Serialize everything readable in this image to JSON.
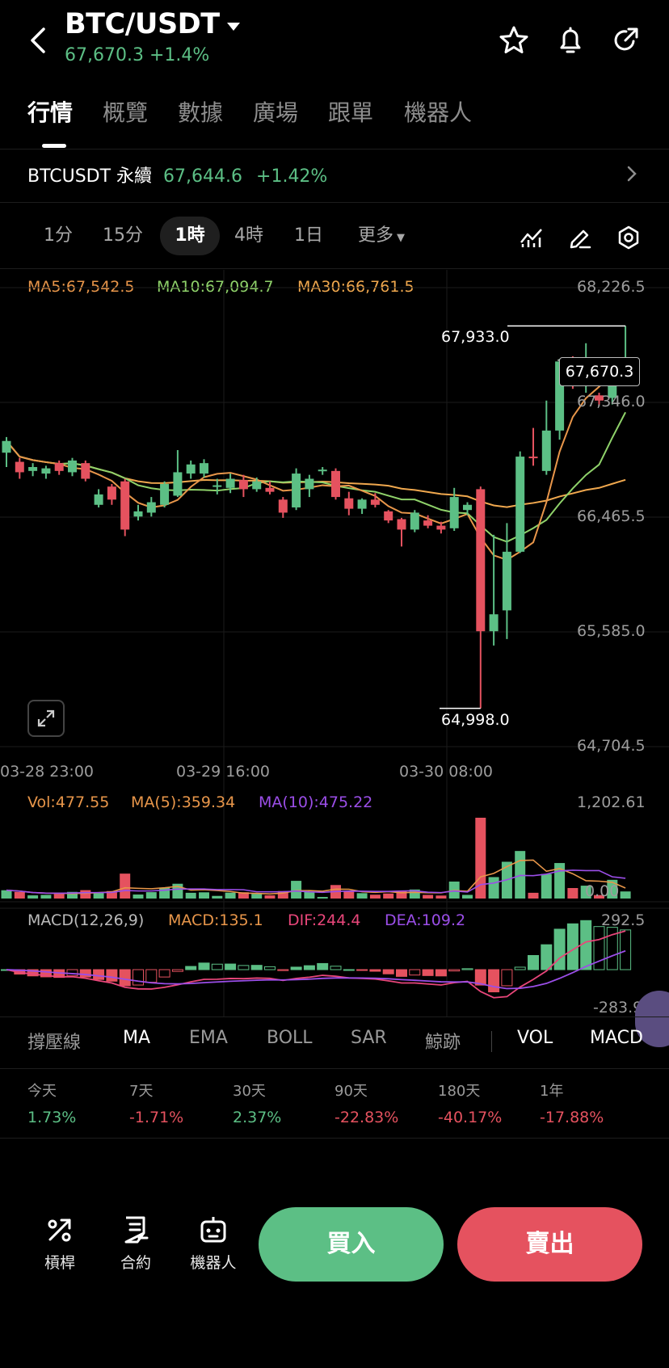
{
  "header": {
    "pair": "BTC/USDT",
    "price_change": "67,670.3 +1.4%"
  },
  "tabs": [
    "行情",
    "概覽",
    "數據",
    "廣場",
    "跟單",
    "機器人"
  ],
  "contract": {
    "name": "BTCUSDT 永續",
    "price": "67,644.6",
    "change": "+1.42%"
  },
  "intervals": [
    "1分",
    "15分",
    "1時",
    "4時",
    "1日",
    "更多"
  ],
  "active_interval": "1時",
  "ma_legend": {
    "ma5": "MA5:67,542.5",
    "ma10": "MA10:67,094.7",
    "ma30": "MA30:66,761.5"
  },
  "price_axis": [
    "68,226.5",
    "67,346.0",
    "66,465.5",
    "65,585.0",
    "64,704.5"
  ],
  "time_axis": [
    "03-28 23:00",
    "03-29 16:00",
    "03-30 08:00"
  ],
  "annotations": {
    "high": "67,933.0",
    "low": "64,998.0",
    "current": "67,670.3"
  },
  "volume_legend": {
    "vol": "Vol:477.55",
    "ma5": "MA(5):359.34",
    "ma10": "MA(10):475.22",
    "axis_top": "1,202.61",
    "axis_bottom": "0.00"
  },
  "macd_legend": {
    "params": "MACD(12,26,9)",
    "macd": "MACD:135.1",
    "dif": "DIF:244.4",
    "dea": "DEA:109.2",
    "axis_top": "292.5",
    "axis_bottom": "-283.9"
  },
  "indicator_tabs": [
    "撐壓線",
    "MA",
    "EMA",
    "BOLL",
    "SAR",
    "鯨跡",
    "VOL",
    "MACD"
  ],
  "performance": [
    {
      "label": "今天",
      "value": "1.73%",
      "color": "green"
    },
    {
      "label": "7天",
      "value": "-1.71%",
      "color": "red"
    },
    {
      "label": "30天",
      "value": "2.37%",
      "color": "green"
    },
    {
      "label": "90天",
      "value": "-22.83%",
      "color": "red"
    },
    {
      "label": "180天",
      "value": "-40.17%",
      "color": "red"
    },
    {
      "label": "1年",
      "value": "-17.88%",
      "color": "red"
    }
  ],
  "bottom": {
    "leverage": "槓桿",
    "contract": "合約",
    "robot": "機器人",
    "buy": "買入",
    "sell": "賣出"
  },
  "colors": {
    "up": "#5cbf85",
    "down": "#e5525f",
    "ma5": "#e8964a",
    "ma10": "#8fd26a",
    "ma30": "#f0a84e",
    "dif": "#e8467a",
    "dea": "#9b4ee8"
  },
  "chart_data": {
    "type": "candlestick",
    "interval": "1時",
    "ylim": [
      64704.5,
      68226.5
    ],
    "candles": [
      [
        66960,
        67050,
        66850,
        67080
      ],
      [
        66890,
        66810,
        66760,
        66920
      ],
      [
        66820,
        66850,
        66780,
        66880
      ],
      [
        66800,
        66840,
        66760,
        66860
      ],
      [
        66880,
        66820,
        66790,
        66900
      ],
      [
        66810,
        66900,
        66780,
        66920
      ],
      [
        66880,
        66760,
        66740,
        66900
      ],
      [
        66560,
        66640,
        66540,
        66680
      ],
      [
        66700,
        66600,
        66560,
        66720
      ],
      [
        66740,
        66370,
        66320,
        66760
      ],
      [
        66470,
        66510,
        66440,
        66560
      ],
      [
        66500,
        66580,
        66470,
        66620
      ],
      [
        66560,
        66720,
        66540,
        66740
      ],
      [
        66630,
        66810,
        66620,
        66980
      ],
      [
        66800,
        66870,
        66760,
        66900
      ],
      [
        66800,
        66880,
        66770,
        66910
      ],
      [
        66700,
        66710,
        66640,
        66760
      ],
      [
        66690,
        66760,
        66650,
        66800
      ],
      [
        66750,
        66680,
        66620,
        66790
      ],
      [
        66680,
        66740,
        66660,
        66770
      ],
      [
        66690,
        66660,
        66640,
        66740
      ],
      [
        66600,
        66500,
        66460,
        66620
      ],
      [
        66540,
        66800,
        66520,
        66840
      ],
      [
        66680,
        66760,
        66620,
        66790
      ],
      [
        66820,
        66830,
        66790,
        66850
      ],
      [
        66820,
        66620,
        66600,
        66840
      ],
      [
        66610,
        66530,
        66480,
        66660
      ],
      [
        66530,
        66600,
        66490,
        66610
      ],
      [
        66600,
        66560,
        66540,
        66650
      ],
      [
        66510,
        66440,
        66420,
        66520
      ],
      [
        66450,
        66370,
        66240,
        66460
      ],
      [
        66370,
        66500,
        66350,
        66520
      ],
      [
        66440,
        66400,
        66380,
        66480
      ],
      [
        66400,
        66370,
        66340,
        66430
      ],
      [
        66380,
        66620,
        66360,
        66690
      ],
      [
        66520,
        66560,
        66480,
        66580
      ],
      [
        66680,
        65590,
        64998,
        66700
      ],
      [
        65590,
        65720,
        65480,
        66330
      ],
      [
        65750,
        66200,
        65530,
        66420
      ],
      [
        66200,
        66930,
        66190,
        66970
      ],
      [
        66930,
        66920,
        66860,
        67150
      ],
      [
        66820,
        67130,
        66790,
        67360
      ],
      [
        67130,
        67660,
        67060,
        67680
      ],
      [
        67660,
        67530,
        67450,
        67700
      ],
      [
        67520,
        67650,
        67420,
        67800
      ],
      [
        67400,
        67360,
        67330,
        67420
      ],
      [
        67380,
        67650,
        67330,
        67680
      ],
      [
        67640,
        67670,
        67620,
        67933
      ]
    ]
  }
}
